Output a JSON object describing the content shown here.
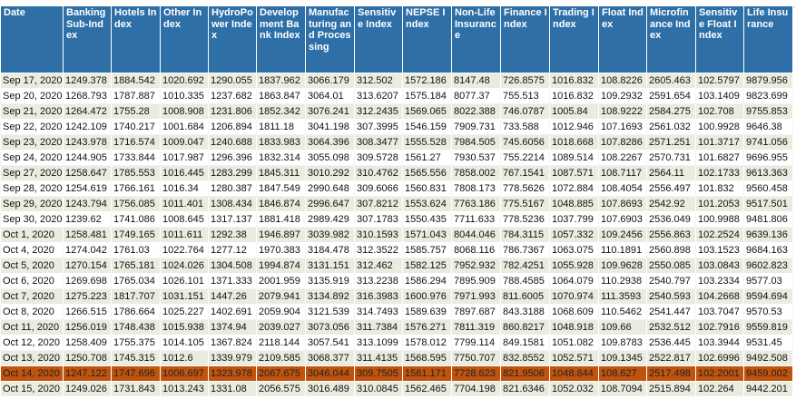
{
  "colors": {
    "header": "#2e6fa7",
    "alt_row": "#ecebe0",
    "highlight_row": "#c0540e"
  },
  "table": {
    "headers": [
      "Date",
      "Banking Sub-Index",
      "Hotels Index",
      "Other Index",
      "HydroPower Index",
      "Development Bank Index",
      "Manufacturing and Processing",
      "Sensitive Index",
      "NEPSE Index",
      "Non-Life Insurance",
      "Finance Index",
      "Trading Index",
      "Float Index",
      "Microfinance Index",
      "Sensitive Float Index",
      "Life Insurance"
    ],
    "highlighted_row": "Oct 14, 2020",
    "rows": [
      [
        "Sep 17, 2020",
        "1249.378",
        "1884.542",
        "1020.692",
        "1290.055",
        "1837.962",
        "3066.179",
        "312.502",
        "1572.186",
        "8147.48",
        "726.8575",
        "1016.832",
        "108.8226",
        "2605.463",
        "102.5797",
        "9879.956"
      ],
      [
        "Sep 20, 2020",
        "1268.793",
        "1787.887",
        "1010.335",
        "1237.682",
        "1863.847",
        "3064.01",
        "313.6207",
        "1575.184",
        "8077.37",
        "755.513",
        "1016.832",
        "109.2932",
        "2591.654",
        "103.1409",
        "9823.699"
      ],
      [
        "Sep 21, 2020",
        "1264.472",
        "1755.28",
        "1008.908",
        "1231.806",
        "1852.342",
        "3076.241",
        "312.2435",
        "1569.065",
        "8022.388",
        "746.0787",
        "1005.84",
        "108.9222",
        "2584.275",
        "102.708",
        "9755.853"
      ],
      [
        "Sep 22, 2020",
        "1242.109",
        "1740.217",
        "1001.684",
        "1206.894",
        "1811.18",
        "3041.198",
        "307.3995",
        "1546.159",
        "7909.731",
        "733.588",
        "1012.946",
        "107.1693",
        "2561.032",
        "100.9928",
        "9646.38"
      ],
      [
        "Sep 23, 2020",
        "1243.978",
        "1716.574",
        "1009.047",
        "1240.688",
        "1833.983",
        "3064.396",
        "308.3477",
        "1555.528",
        "7984.505",
        "745.6056",
        "1018.668",
        "107.8286",
        "2571.251",
        "101.3717",
        "9741.056"
      ],
      [
        "Sep 24, 2020",
        "1244.905",
        "1733.844",
        "1017.987",
        "1296.396",
        "1832.314",
        "3055.098",
        "309.5728",
        "1561.27",
        "7930.537",
        "755.2214",
        "1089.514",
        "108.2267",
        "2570.731",
        "101.6827",
        "9696.955"
      ],
      [
        "Sep 27, 2020",
        "1258.647",
        "1785.553",
        "1016.445",
        "1283.299",
        "1845.311",
        "3010.292",
        "310.4762",
        "1565.556",
        "7858.002",
        "767.1541",
        "1087.571",
        "108.7117",
        "2564.11",
        "102.1733",
        "9613.363"
      ],
      [
        "Sep 28, 2020",
        "1254.619",
        "1766.161",
        "1016.34",
        "1280.387",
        "1847.549",
        "2990.648",
        "309.6066",
        "1560.831",
        "7808.173",
        "778.5626",
        "1072.884",
        "108.4054",
        "2556.497",
        "101.832",
        "9560.458"
      ],
      [
        "Sep 29, 2020",
        "1243.794",
        "1756.085",
        "1011.401",
        "1308.434",
        "1846.874",
        "2996.647",
        "307.8212",
        "1553.624",
        "7763.186",
        "775.5167",
        "1048.885",
        "107.8693",
        "2542.92",
        "101.2053",
        "9517.501"
      ],
      [
        "Sep 30, 2020",
        "1239.62",
        "1741.086",
        "1008.645",
        "1317.137",
        "1881.418",
        "2989.429",
        "307.1783",
        "1550.435",
        "7711.633",
        "778.5236",
        "1037.799",
        "107.6903",
        "2536.049",
        "100.9988",
        "9481.806"
      ],
      [
        "Oct 1, 2020",
        "1258.481",
        "1749.165",
        "1011.611",
        "1292.38",
        "1946.897",
        "3039.982",
        "310.1593",
        "1571.043",
        "8044.046",
        "784.3115",
        "1057.332",
        "109.2456",
        "2556.863",
        "102.2524",
        "9639.136"
      ],
      [
        "Oct 4, 2020",
        "1274.042",
        "1761.03",
        "1022.764",
        "1277.12",
        "1970.383",
        "3184.478",
        "312.3522",
        "1585.757",
        "8068.116",
        "786.7367",
        "1063.075",
        "110.1891",
        "2560.898",
        "103.1523",
        "9684.163"
      ],
      [
        "Oct 5, 2020",
        "1270.154",
        "1765.181",
        "1024.026",
        "1304.508",
        "1994.874",
        "3131.151",
        "312.462",
        "1582.125",
        "7952.932",
        "782.4251",
        "1055.928",
        "109.9628",
        "2550.085",
        "103.0843",
        "9602.823"
      ],
      [
        "Oct 6, 2020",
        "1269.698",
        "1765.034",
        "1026.101",
        "1371.333",
        "2001.959",
        "3135.919",
        "313.2238",
        "1586.294",
        "7895.909",
        "788.4585",
        "1064.079",
        "110.2938",
        "2540.797",
        "103.2334",
        "9577.03"
      ],
      [
        "Oct 7, 2020",
        "1275.223",
        "1817.707",
        "1031.151",
        "1447.26",
        "2079.941",
        "3134.892",
        "316.3983",
        "1600.976",
        "7971.993",
        "811.6005",
        "1070.974",
        "111.3593",
        "2540.593",
        "104.2668",
        "9594.694"
      ],
      [
        "Oct 8, 2020",
        "1266.515",
        "1786.664",
        "1025.227",
        "1402.691",
        "2059.904",
        "3121.539",
        "314.7493",
        "1589.639",
        "7897.687",
        "843.3188",
        "1068.609",
        "110.5462",
        "2541.447",
        "103.7047",
        "9570.53"
      ],
      [
        "Oct 11, 2020",
        "1256.019",
        "1748.438",
        "1015.938",
        "1374.94",
        "2039.027",
        "3073.056",
        "311.7384",
        "1576.271",
        "7811.319",
        "860.8217",
        "1048.918",
        "109.66",
        "2532.512",
        "102.7916",
        "9559.819"
      ],
      [
        "Oct 12, 2020",
        "1258.409",
        "1755.375",
        "1014.105",
        "1367.824",
        "2118.144",
        "3057.541",
        "313.1099",
        "1578.012",
        "7799.114",
        "849.1581",
        "1051.082",
        "109.8783",
        "2536.445",
        "103.3944",
        "9531.45"
      ],
      [
        "Oct 13, 2020",
        "1250.708",
        "1745.315",
        "1012.6",
        "1339.979",
        "2109.585",
        "3068.377",
        "311.4135",
        "1568.595",
        "7750.707",
        "832.8552",
        "1052.571",
        "109.1345",
        "2522.817",
        "102.6996",
        "9492.508"
      ],
      [
        "Oct 14, 2020",
        "1247.122",
        "1747.696",
        "1006.697",
        "1323.978",
        "2067.675",
        "3046.044",
        "309.7505",
        "1561.171",
        "7728.623",
        "821.9506",
        "1048.844",
        "108.627",
        "2517.498",
        "102.2001",
        "9459.002"
      ],
      [
        "Oct 15, 2020",
        "1249.026",
        "1731.843",
        "1013.243",
        "1331.08",
        "2056.575",
        "3016.489",
        "310.0845",
        "1562.465",
        "7704.198",
        "821.6346",
        "1052.032",
        "108.7094",
        "2515.894",
        "102.264",
        "9442.201"
      ]
    ]
  }
}
